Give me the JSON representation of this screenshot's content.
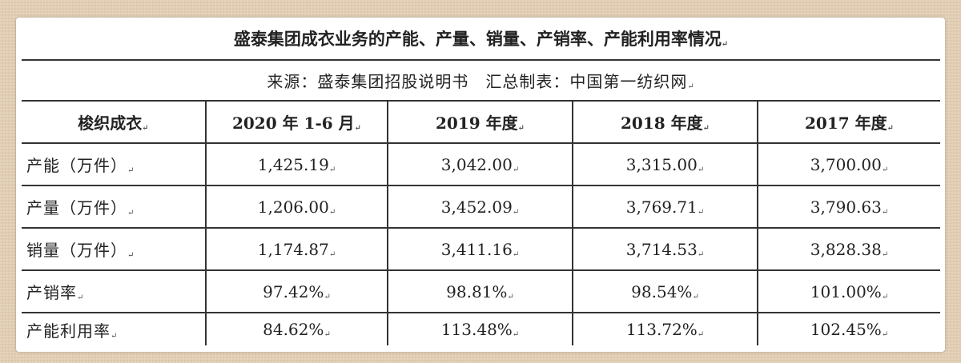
{
  "title": "盛泰集团成衣业务的产能、产量、销量、产销率、产能利用率情况",
  "source": "来源：盛泰集团招股说明书　汇总制表：中国第一纺织网",
  "columns": [
    "梭织成衣",
    "2020 年 1-6 月",
    "2019 年度",
    "2018 年度",
    "2017 年度"
  ],
  "rows": [
    {
      "label": "产能（万件）",
      "values": [
        "1,425.19",
        "3,042.00",
        "3,315.00",
        "3,700.00"
      ]
    },
    {
      "label": "产量（万件）",
      "values": [
        "1,206.00",
        "3,452.09",
        "3,769.71",
        "3,790.63"
      ]
    },
    {
      "label": "销量（万件）",
      "values": [
        "1,174.87",
        "3,411.16",
        "3,714.53",
        "3,828.38"
      ]
    },
    {
      "label": "产销率",
      "values": [
        "97.42%",
        "98.81%",
        "98.54%",
        "101.00%"
      ]
    },
    {
      "label": "产能利用率",
      "values": [
        "84.62%",
        "113.48%",
        "113.72%",
        "102.45%"
      ]
    }
  ]
}
